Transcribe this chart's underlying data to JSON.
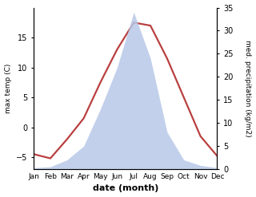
{
  "months": [
    "Jan",
    "Feb",
    "Mar",
    "Apr",
    "May",
    "Jun",
    "Jul",
    "Aug",
    "Sep",
    "Oct",
    "Nov",
    "Dec"
  ],
  "month_indices": [
    1,
    2,
    3,
    4,
    5,
    6,
    7,
    8,
    9,
    10,
    11,
    12
  ],
  "temperature": [
    -4.5,
    -5.2,
    -2.0,
    1.5,
    7.5,
    13.0,
    17.5,
    17.0,
    11.5,
    5.0,
    -1.5,
    -4.8
  ],
  "precipitation": [
    0.3,
    0.5,
    2.0,
    5.0,
    13.0,
    22.0,
    34.0,
    24.0,
    8.0,
    2.0,
    0.8,
    0.3
  ],
  "temp_color": "#b94040",
  "precip_fill_color": "#b8c8e8",
  "precip_fill_alpha": 0.85,
  "temp_ylim": [
    -7,
    20
  ],
  "precip_ylim": [
    0,
    35
  ],
  "temp_yticks": [
    -5,
    0,
    5,
    10,
    15
  ],
  "precip_yticks": [
    0,
    5,
    10,
    15,
    20,
    25,
    30,
    35
  ],
  "xlabel": "date (month)",
  "ylabel_left": "max temp (C)",
  "ylabel_right": "med. precipitation (kg/m2)",
  "bg_color": "#ffffff",
  "linewidth": 1.6,
  "figsize": [
    3.2,
    2.47
  ],
  "dpi": 100
}
